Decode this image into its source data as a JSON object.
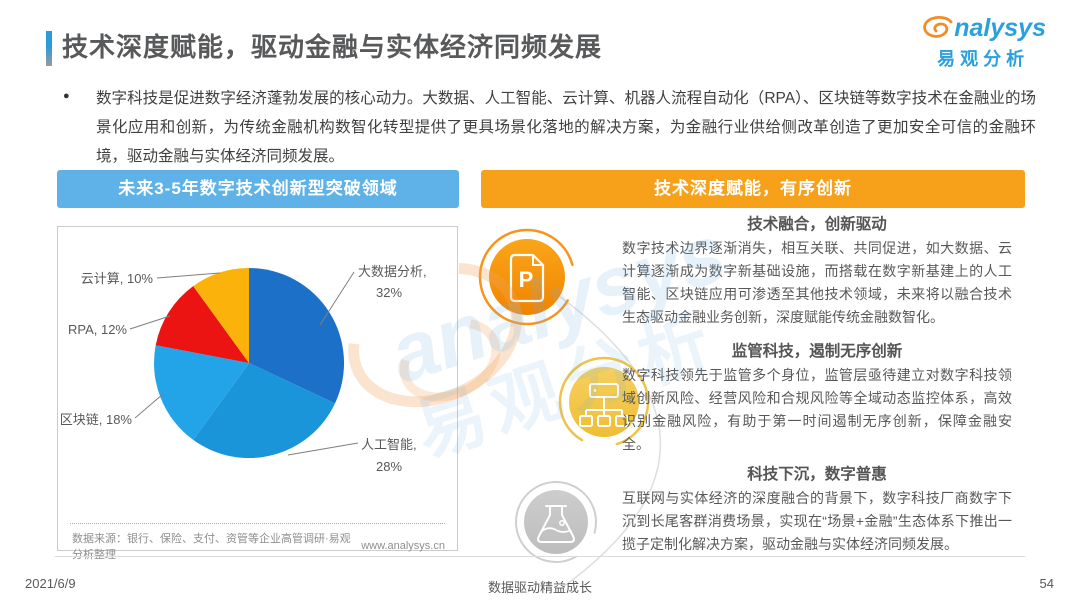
{
  "page": {
    "title": "技术深度赋能，驱动金融与实体经济同频发展",
    "intro": "数字科技是促进数字经济蓬勃发展的核心动力。大数据、人工智能、云计算、机器人流程自动化（RPA）、区块链等数字技术在金融业的场景化应用和创新，为传统金融机构数智化转型提供了更具场景化落地的解决方案，为金融行业供给侧改革创造了更加安全可信的金融环境，驱动金融与实体经济同频发展。"
  },
  "logo": {
    "brand": "analysys",
    "brand_tail": "nalysys",
    "cn": "易观分析"
  },
  "left_panel": {
    "header": "未来3-5年数字技术创新型突破领域",
    "labels": {
      "big_data_1": "大数据分析,",
      "big_data_2": "32%",
      "ai_1": "人工智能,",
      "ai_2": "28%",
      "blockchain": "区块链, 18%",
      "rpa": "RPA, 12%",
      "cloud": "云计算, 10%"
    },
    "source": "数据来源：银行、保险、支付、资管等企业高管调研·易观分析整理",
    "website": "www.analysys.cn"
  },
  "chart_data": {
    "type": "pie",
    "title": "未来3-5年数字技术创新型突破领域",
    "labels": [
      "大数据分析",
      "人工智能",
      "区块链",
      "RPA",
      "云计算"
    ],
    "values": [
      32,
      28,
      18,
      12,
      10
    ],
    "unit": "%",
    "colors": [
      "#1c70c8",
      "#1b95da",
      "#24a4e8",
      "#ec1313",
      "#fbb30c"
    ],
    "start_angle_deg": 0,
    "direction": "clockwise",
    "legend_position": "leader-line labels around pie"
  },
  "right_panel": {
    "header": "技术深度赋能，有序创新",
    "sections": [
      {
        "icon": "document-p-icon",
        "title": "技术融合，创新驱动",
        "body": "数字技术边界逐渐消失，相互关联、共同促进，如大数据、云计算逐渐成为数字新基础设施，而搭载在数字新基建上的人工智能、区块链应用可渗透至其他技术领域，未来将以融合技术生态驱动金融业务创新，深度赋能传统金融数智化。"
      },
      {
        "icon": "org-chart-icon",
        "title": "监管科技，遏制无序创新",
        "body": "数字科技领先于监管多个身位，监管层亟待建立对数字科技领域创新风险、经营风险和合规风险等全域动态监控体系，高效识别金融风险，有助于第一时间遏制无序创新，保障金融安全。"
      },
      {
        "icon": "flask-icon",
        "title": "科技下沉，数字普惠",
        "body": "互联网与实体经济的深度融合的背景下，数字科技厂商数字下沉到长尾客群消费场景，实现在“场景+金融”生态体系下推出一揽子定制化解决方案，驱动金融与实体经济同频发展。"
      }
    ]
  },
  "watermark": {
    "en": "analysys",
    "cn": "易观分析"
  },
  "footer": {
    "date": "2021/6/9",
    "slogan": "数据驱动精益成长",
    "page_number": "54"
  },
  "colors": {
    "header_blue": "#5fb2e7",
    "header_orange": "#f7a11b",
    "logo_blue": "#2aa0df",
    "icon_orange": "#f7941e",
    "icon_gold": "#f2c544",
    "icon_gray": "#c6c6c6"
  }
}
